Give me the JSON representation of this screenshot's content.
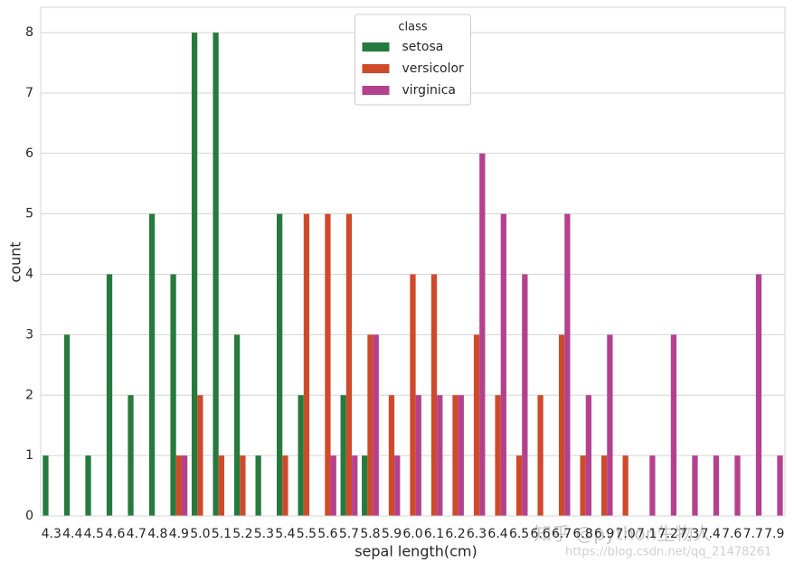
{
  "chart_data": {
    "type": "bar",
    "xlabel": "sepal length(cm)",
    "ylabel": "count",
    "categories": [
      "4.3",
      "4.4",
      "4.5",
      "4.6",
      "4.7",
      "4.8",
      "4.9",
      "5.0",
      "5.1",
      "5.2",
      "5.3",
      "5.4",
      "5.5",
      "5.6",
      "5.7",
      "5.8",
      "5.9",
      "6.0",
      "6.1",
      "6.2",
      "6.3",
      "6.4",
      "6.5",
      "6.6",
      "6.7",
      "6.8",
      "6.9",
      "7.0",
      "7.1",
      "7.2",
      "7.3",
      "7.4",
      "7.6",
      "7.7",
      "7.9"
    ],
    "series": [
      {
        "name": "setosa",
        "color": "#277a3e",
        "values": [
          1,
          3,
          1,
          4,
          2,
          5,
          4,
          8,
          8,
          3,
          1,
          5,
          2,
          0,
          2,
          1,
          0,
          0,
          0,
          0,
          0,
          0,
          0,
          0,
          0,
          0,
          0,
          0,
          0,
          0,
          0,
          0,
          0,
          0,
          0
        ]
      },
      {
        "name": "versicolor",
        "color": "#cf4a2b",
        "values": [
          0,
          0,
          0,
          0,
          0,
          0,
          1,
          2,
          1,
          1,
          0,
          1,
          5,
          5,
          5,
          3,
          2,
          4,
          4,
          2,
          3,
          2,
          1,
          2,
          3,
          1,
          1,
          1,
          0,
          0,
          0,
          0,
          0,
          0,
          0
        ]
      },
      {
        "name": "virginica",
        "color": "#b4418e",
        "values": [
          0,
          0,
          0,
          0,
          0,
          0,
          1,
          0,
          0,
          0,
          0,
          0,
          0,
          1,
          1,
          3,
          1,
          2,
          2,
          2,
          6,
          5,
          4,
          0,
          5,
          2,
          3,
          0,
          1,
          3,
          1,
          1,
          1,
          4,
          1
        ]
      }
    ],
    "legend_title": "class",
    "legend_position": "upper center",
    "ylim": [
      0,
      8.42
    ],
    "yticks": [
      0,
      1,
      2,
      3,
      4,
      5,
      6,
      7,
      8
    ],
    "grid": true,
    "annotations": [
      "知乎 @python生物人",
      "https://blog.csdn.net/qq_21478261"
    ]
  }
}
